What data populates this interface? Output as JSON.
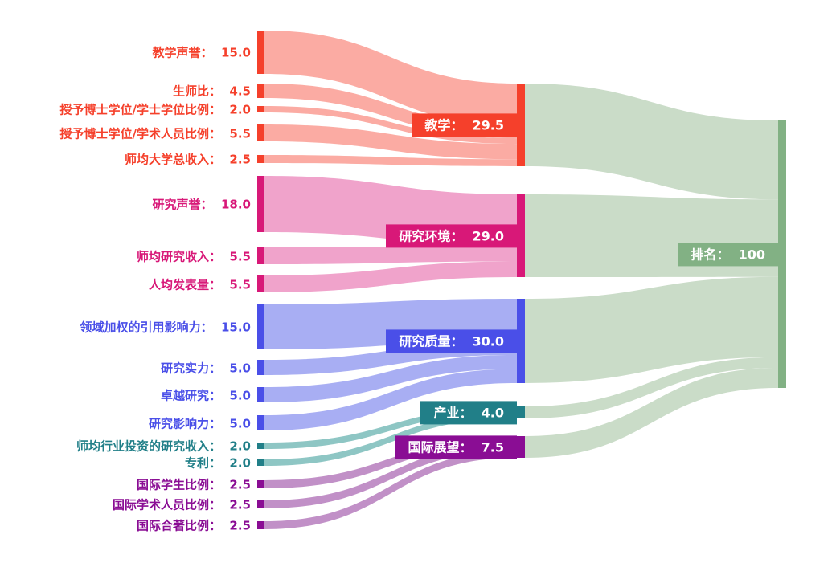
{
  "chart_data": {
    "type": "sankey",
    "title": "",
    "separator": "：  ",
    "background_color": "#ffffff",
    "legend_position": "none",
    "grid": false,
    "sources": [
      {
        "id": "teaching_reputation",
        "label": "教学声誉",
        "value": 15.0,
        "display": "15.0",
        "group": "teaching"
      },
      {
        "id": "student_staff_ratio",
        "label": "生师比",
        "value": 4.5,
        "display": "4.5",
        "group": "teaching"
      },
      {
        "id": "doctorate_bachelor_ratio",
        "label": "授予博士学位/学士学位比例",
        "value": 2.0,
        "display": "2.0",
        "group": "teaching"
      },
      {
        "id": "doctorate_staff_ratio",
        "label": "授予博士学位/学术人员比例",
        "value": 5.5,
        "display": "5.5",
        "group": "teaching"
      },
      {
        "id": "institutional_income",
        "label": "师均大学总收入",
        "value": 2.5,
        "display": "2.5",
        "group": "teaching"
      },
      {
        "id": "research_reputation",
        "label": "研究声誉",
        "value": 18.0,
        "display": "18.0",
        "group": "research_environment"
      },
      {
        "id": "research_income",
        "label": "师均研究收入",
        "value": 5.5,
        "display": "5.5",
        "group": "research_environment"
      },
      {
        "id": "publications_per_capita",
        "label": "人均发表量",
        "value": 5.5,
        "display": "5.5",
        "group": "research_environment"
      },
      {
        "id": "field_weighted_citation_impact",
        "label": "领域加权的引用影响力",
        "value": 15.0,
        "display": "15.0",
        "group": "research_quality"
      },
      {
        "id": "research_strength",
        "label": "研究实力",
        "value": 5.0,
        "display": "5.0",
        "group": "research_quality"
      },
      {
        "id": "research_excellence",
        "label": "卓越研究",
        "value": 5.0,
        "display": "5.0",
        "group": "research_quality"
      },
      {
        "id": "research_influence",
        "label": "研究影响力",
        "value": 5.0,
        "display": "5.0",
        "group": "research_quality"
      },
      {
        "id": "industry_research_income",
        "label": "师均行业投资的研究收入",
        "value": 2.0,
        "display": "2.0",
        "group": "industry"
      },
      {
        "id": "patents",
        "label": "专利",
        "value": 2.0,
        "display": "2.0",
        "group": "industry"
      },
      {
        "id": "international_students",
        "label": "国际学生比例",
        "value": 2.5,
        "display": "2.5",
        "group": "international_outlook"
      },
      {
        "id": "international_staff",
        "label": "国际学术人员比例",
        "value": 2.5,
        "display": "2.5",
        "group": "international_outlook"
      },
      {
        "id": "international_coauthorship",
        "label": "国际合著比例",
        "value": 2.5,
        "display": "2.5",
        "group": "international_outlook"
      }
    ],
    "categories": [
      {
        "id": "teaching",
        "label": "教学",
        "value": 29.5,
        "display": "29.5",
        "color": "#f5402b",
        "flow_color": "#fbaba3"
      },
      {
        "id": "research_environment",
        "label": "研究环境",
        "value": 29.0,
        "display": "29.0",
        "color": "#d81878",
        "flow_color": "#f0a3cb"
      },
      {
        "id": "research_quality",
        "label": "研究质量",
        "value": 30.0,
        "display": "30.0",
        "color": "#4a4fe8",
        "flow_color": "#a8aef3"
      },
      {
        "id": "industry",
        "label": "产业",
        "value": 4.0,
        "display": "4.0",
        "color": "#217f88",
        "flow_color": "#8ec6c4"
      },
      {
        "id": "international_outlook",
        "label": "国际展望",
        "value": 7.5,
        "display": "7.5",
        "color": "#8a0d94",
        "flow_color": "#c190c7"
      }
    ],
    "total": {
      "id": "rank",
      "label": "排名",
      "value": 100,
      "display": "100",
      "color": "#82b184",
      "flow_color": "#cadcc8"
    },
    "links": [
      {
        "source": "teaching_reputation",
        "target": "teaching",
        "value": 15.0
      },
      {
        "source": "student_staff_ratio",
        "target": "teaching",
        "value": 4.5
      },
      {
        "source": "doctorate_bachelor_ratio",
        "target": "teaching",
        "value": 2.0
      },
      {
        "source": "doctorate_staff_ratio",
        "target": "teaching",
        "value": 5.5
      },
      {
        "source": "institutional_income",
        "target": "teaching",
        "value": 2.5
      },
      {
        "source": "research_reputation",
        "target": "research_environment",
        "value": 18.0
      },
      {
        "source": "research_income",
        "target": "research_environment",
        "value": 5.5
      },
      {
        "source": "publications_per_capita",
        "target": "research_environment",
        "value": 5.5
      },
      {
        "source": "field_weighted_citation_impact",
        "target": "research_quality",
        "value": 15.0
      },
      {
        "source": "research_strength",
        "target": "research_quality",
        "value": 5.0
      },
      {
        "source": "research_excellence",
        "target": "research_quality",
        "value": 5.0
      },
      {
        "source": "research_influence",
        "target": "research_quality",
        "value": 5.0
      },
      {
        "source": "industry_research_income",
        "target": "industry",
        "value": 2.0
      },
      {
        "source": "patents",
        "target": "industry",
        "value": 2.0
      },
      {
        "source": "international_students",
        "target": "international_outlook",
        "value": 2.5
      },
      {
        "source": "international_staff",
        "target": "international_outlook",
        "value": 2.5
      },
      {
        "source": "international_coauthorship",
        "target": "international_outlook",
        "value": 2.5
      },
      {
        "source": "teaching",
        "target": "rank",
        "value": 29.5
      },
      {
        "source": "research_environment",
        "target": "rank",
        "value": 29.0
      },
      {
        "source": "research_quality",
        "target": "rank",
        "value": 30.0
      },
      {
        "source": "industry",
        "target": "rank",
        "value": 4.0
      },
      {
        "source": "international_outlook",
        "target": "rank",
        "value": 7.5
      }
    ]
  }
}
